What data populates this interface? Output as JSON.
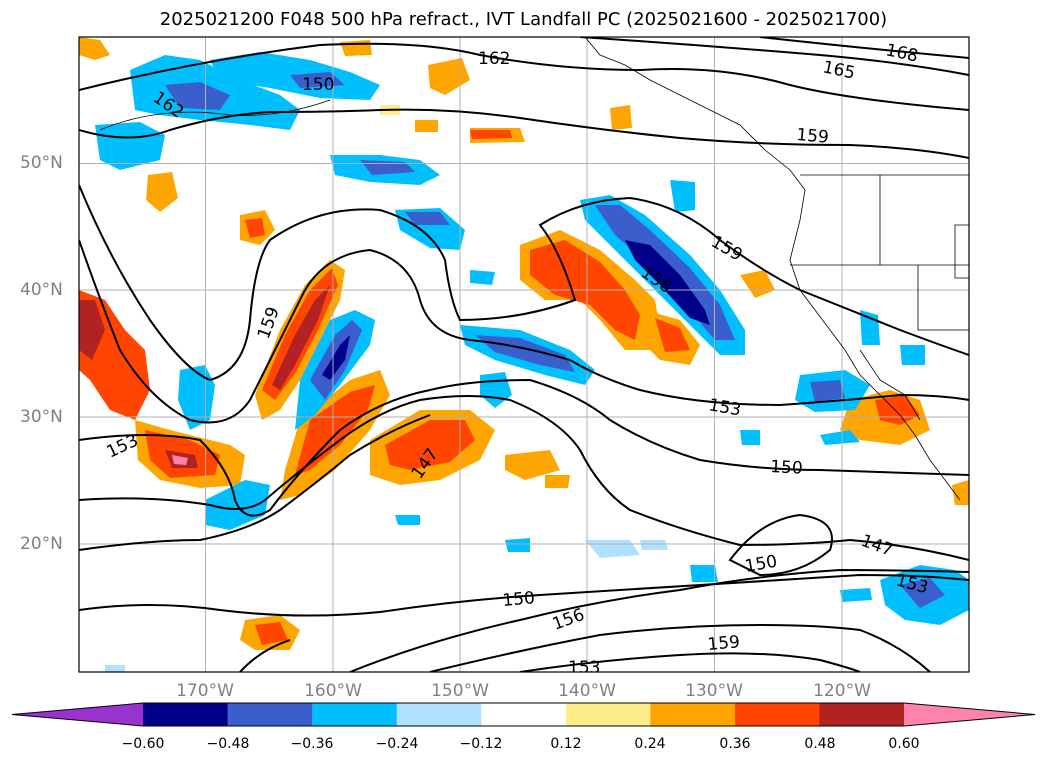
{
  "title": "2025021200 F048 500 hPa refract., IVT Landfall PC (2025021600 - 2025021700)",
  "map": {
    "lon_ticks": [
      "170°W",
      "160°W",
      "150°W",
      "140°W",
      "130°W",
      "120°W"
    ],
    "lat_ticks": [
      "50°N",
      "40°N",
      "30°N",
      "20°N"
    ],
    "contour_labels": [
      "162",
      "168",
      "165",
      "159",
      "150",
      "162",
      "159",
      "156",
      "159",
      "153",
      "153",
      "150",
      "147",
      "150",
      "147",
      "153",
      "150",
      "156",
      "159",
      "153"
    ],
    "contour_color": "#000000"
  },
  "colorbar": {
    "ticks": [
      "−0.60",
      "−0.48",
      "−0.36",
      "−0.24",
      "−0.12",
      "0.12",
      "0.24",
      "0.36",
      "0.48",
      "0.60"
    ],
    "colors": [
      "#9a32cd",
      "#00008b",
      "#3a5fcd",
      "#00bfff",
      "#b0e2ff",
      "#ffffff",
      "#ffec8b",
      "#ffa500",
      "#ff4500",
      "#b22222",
      "#ff82ab"
    ]
  }
}
